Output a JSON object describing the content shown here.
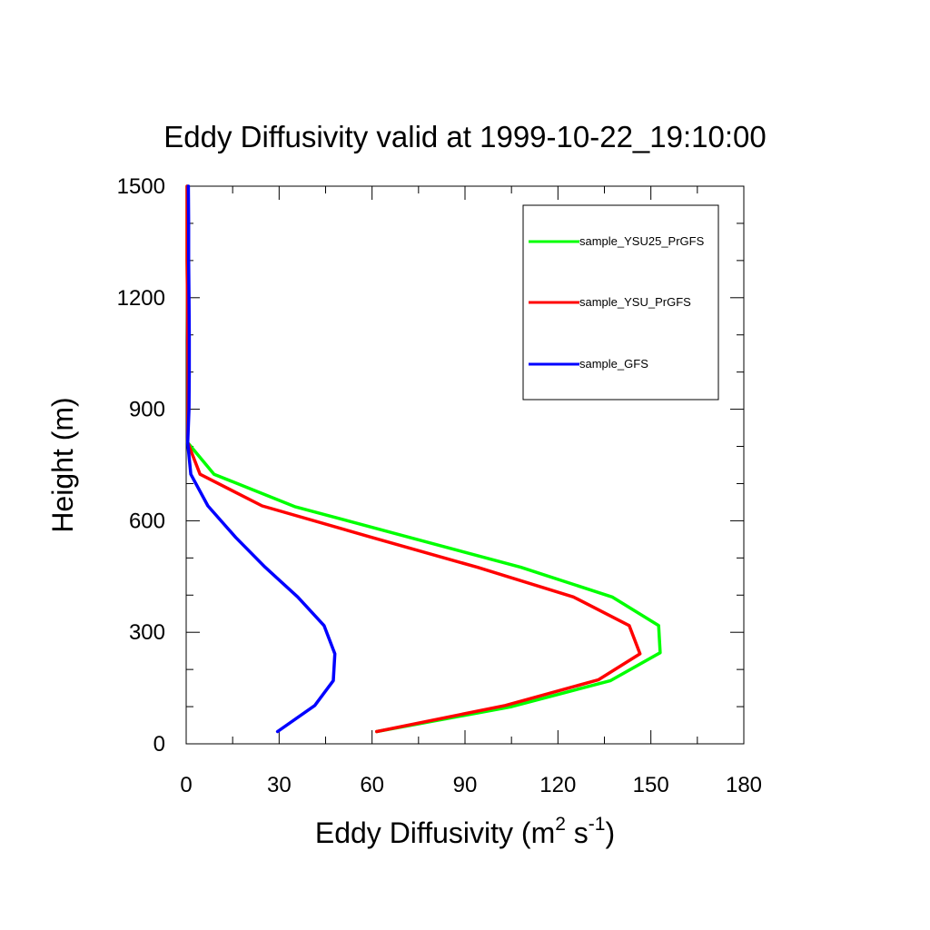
{
  "chart_data": {
    "type": "line",
    "title": "Eddy Diffusivity valid at 1999-10-22_19:10:00",
    "xlabel": "Eddy Diffusivity",
    "xlabel_units_base": "m",
    "xlabel_units_exp1": "2",
    "xlabel_units_mid": "s",
    "xlabel_units_exp2": "-1",
    "xlabel_open": "(",
    "xlabel_close": ")",
    "ylabel": "Height (m)",
    "xlim": [
      0,
      180
    ],
    "ylim": [
      0,
      1500
    ],
    "xticks": [
      0,
      30,
      60,
      90,
      120,
      150,
      180
    ],
    "xtick_labels": [
      "0",
      "30",
      "60",
      "90",
      "120",
      "150",
      "180"
    ],
    "yticks": [
      0,
      300,
      600,
      900,
      1200,
      1500
    ],
    "ytick_labels": [
      "0",
      "300",
      "600",
      "900",
      "1200",
      "1500"
    ],
    "x_minor_step": 15,
    "y_minor_step": 100,
    "grid": false,
    "legend_position": "top-right",
    "series": [
      {
        "name": "sample_YSU25_PrGFS",
        "color": "#00ff00",
        "points": [
          [
            61.5,
            33
          ],
          [
            105,
            100
          ],
          [
            137,
            170
          ],
          [
            153,
            245
          ],
          [
            152.5,
            318
          ],
          [
            137.5,
            395
          ],
          [
            108,
            475
          ],
          [
            70,
            560
          ],
          [
            35,
            638
          ],
          [
            9,
            725
          ],
          [
            0.5,
            810
          ],
          [
            0.6,
            900
          ],
          [
            0.6,
            1000
          ],
          [
            0.5,
            1100
          ],
          [
            0.4,
            1200
          ],
          [
            0.3,
            1300
          ],
          [
            0.3,
            1400
          ],
          [
            0.3,
            1500
          ]
        ]
      },
      {
        "name": "sample_YSU_PrGFS",
        "color": "#ff0000",
        "points": [
          [
            61.5,
            33
          ],
          [
            103,
            103
          ],
          [
            133,
            172
          ],
          [
            146.5,
            242
          ],
          [
            143,
            318
          ],
          [
            125,
            395
          ],
          [
            94,
            475
          ],
          [
            60,
            555
          ],
          [
            24.5,
            640
          ],
          [
            4.5,
            725
          ],
          [
            0.5,
            810
          ],
          [
            0.6,
            900
          ],
          [
            0.6,
            1000
          ],
          [
            0.5,
            1100
          ],
          [
            0.4,
            1200
          ],
          [
            0.3,
            1300
          ],
          [
            0.3,
            1400
          ],
          [
            0.3,
            1500
          ]
        ]
      },
      {
        "name": "sample_GFS",
        "color": "#0000ff",
        "points": [
          [
            29.5,
            33
          ],
          [
            41.5,
            103
          ],
          [
            47.5,
            170
          ],
          [
            48,
            242
          ],
          [
            44.5,
            318
          ],
          [
            36,
            395
          ],
          [
            25.5,
            475
          ],
          [
            16,
            555
          ],
          [
            7,
            640
          ],
          [
            1.5,
            725
          ],
          [
            0.5,
            810
          ],
          [
            0.9,
            900
          ],
          [
            1.0,
            1000
          ],
          [
            1.0,
            1100
          ],
          [
            0.9,
            1200
          ],
          [
            0.8,
            1300
          ],
          [
            0.8,
            1400
          ],
          [
            0.7,
            1500
          ]
        ]
      }
    ]
  }
}
